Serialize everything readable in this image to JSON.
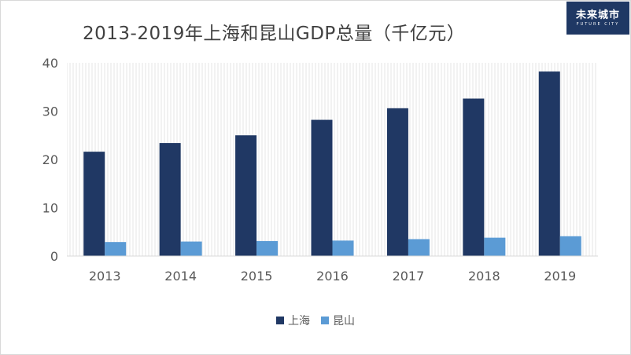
{
  "title": "2013-2019年上海和昆山GDP总量（千亿元）",
  "logo": {
    "main": "未来城市",
    "sub": "FUTURE CITY"
  },
  "colors": {
    "shanghai": "#203864",
    "kunshan": "#5b9bd5",
    "plot_bg_stripe": "#f2f2f2"
  },
  "chart_data": {
    "type": "bar",
    "title": "2013-2019年上海和昆山GDP总量（千亿元）",
    "categories": [
      "2013",
      "2014",
      "2015",
      "2016",
      "2017",
      "2018",
      "2019"
    ],
    "series": [
      {
        "name": "上海",
        "values": [
          21.6,
          23.4,
          25.0,
          28.2,
          30.6,
          32.6,
          38.2
        ]
      },
      {
        "name": "昆山",
        "values": [
          2.9,
          3.0,
          3.1,
          3.2,
          3.5,
          3.8,
          4.1
        ]
      }
    ],
    "ylim": [
      0,
      40
    ],
    "yticks": [
      0,
      10,
      20,
      30,
      40
    ],
    "xlabel": "",
    "ylabel": "",
    "legend_position": "bottom"
  }
}
